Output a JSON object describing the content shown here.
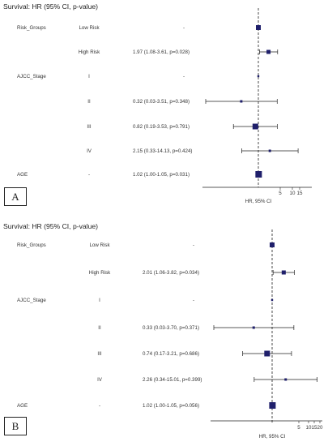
{
  "chart_data": [
    {
      "type": "forest",
      "panel": "A",
      "title": "Survival: HR (95% CI, p-value)",
      "xlabel": "HR, 95% CI",
      "reference_line": 1,
      "x_ticks": [
        "5",
        "10",
        "15"
      ],
      "rows": [
        {
          "variable": "Risk_Groups",
          "level": "Low Risk",
          "label": "-",
          "hr": 1,
          "lo": 1,
          "hi": 1,
          "ref": true
        },
        {
          "variable": "",
          "level": "High Risk",
          "label": "1.97 (1.08-3.61, p=0.028)",
          "hr": 1.97,
          "lo": 1.08,
          "hi": 3.61
        },
        {
          "variable": "AJCC_Stage",
          "level": "I",
          "label": "-",
          "hr": 1,
          "lo": 1,
          "hi": 1,
          "ref": true
        },
        {
          "variable": "",
          "level": "II",
          "label": "0.32 (0.03-3.51, p=0.348)",
          "hr": 0.32,
          "lo": 0.03,
          "hi": 3.51
        },
        {
          "variable": "",
          "level": "III",
          "label": "0.82 (0.19-3.53, p=0.791)",
          "hr": 0.82,
          "lo": 0.19,
          "hi": 3.53
        },
        {
          "variable": "",
          "level": "IV",
          "label": "2.15 (0.33-14.13, p=0.424)",
          "hr": 2.15,
          "lo": 0.33,
          "hi": 14.13
        },
        {
          "variable": "AGE",
          "level": "-",
          "label": "1.02 (1.00-1.05, p=0.031)",
          "hr": 1.02,
          "lo": 1.0,
          "hi": 1.05
        }
      ]
    },
    {
      "type": "forest",
      "panel": "B",
      "title": "Survival: HR (95% CI, p-value)",
      "xlabel": "HR, 95% CI",
      "reference_line": 1,
      "x_ticks": [
        "5",
        "10",
        "15",
        "20"
      ],
      "rows": [
        {
          "variable": "Risk_Groups",
          "level": "Low Risk",
          "label": "-",
          "hr": 1,
          "lo": 1,
          "hi": 1,
          "ref": true
        },
        {
          "variable": "",
          "level": "High Risk",
          "label": "2.01 (1.06-3.82, p=0.034)",
          "hr": 2.01,
          "lo": 1.06,
          "hi": 3.82
        },
        {
          "variable": "AJCC_Stage",
          "level": "I",
          "label": "-",
          "hr": 1,
          "lo": 1,
          "hi": 1,
          "ref": true
        },
        {
          "variable": "",
          "level": "II",
          "label": "0.33 (0.03-3.70, p=0.371)",
          "hr": 0.33,
          "lo": 0.03,
          "hi": 3.7
        },
        {
          "variable": "",
          "level": "III",
          "label": "0.74 (0.17-3.21, p=0.686)",
          "hr": 0.74,
          "lo": 0.17,
          "hi": 3.21
        },
        {
          "variable": "",
          "level": "IV",
          "label": "2.26 (0.34-15.01, p=0.399)",
          "hr": 2.26,
          "lo": 0.34,
          "hi": 15.01
        },
        {
          "variable": "AGE",
          "level": "-",
          "label": "1.02 (1.00-1.05, p=0.056)",
          "hr": 1.02,
          "lo": 1.0,
          "hi": 1.05
        }
      ]
    }
  ],
  "colors": {
    "marker": "#1f1f6b",
    "line": "#222222",
    "text": "#333333"
  }
}
